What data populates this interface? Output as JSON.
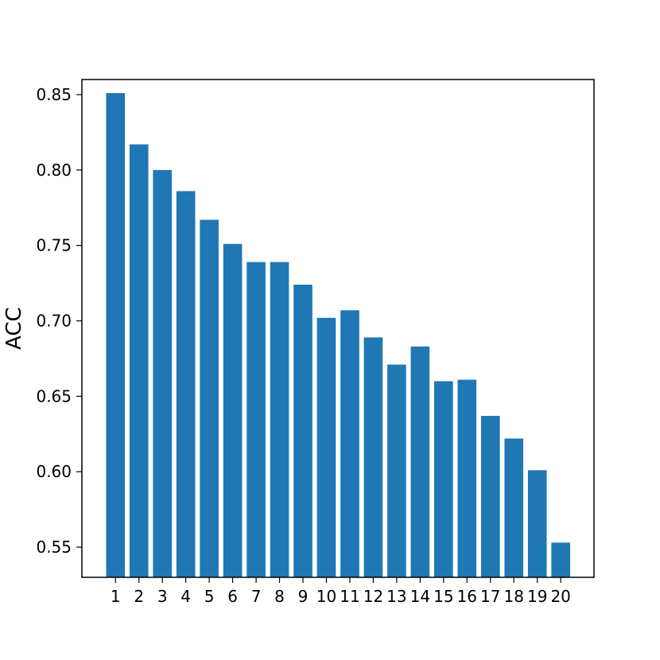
{
  "chart_data": {
    "type": "bar",
    "title": "",
    "xlabel": "",
    "ylabel": "ACC",
    "categories": [
      "1",
      "2",
      "3",
      "4",
      "5",
      "6",
      "7",
      "8",
      "9",
      "10",
      "11",
      "12",
      "13",
      "14",
      "15",
      "16",
      "17",
      "18",
      "19",
      "20"
    ],
    "values": [
      0.851,
      0.817,
      0.8,
      0.786,
      0.767,
      0.751,
      0.739,
      0.739,
      0.724,
      0.702,
      0.707,
      0.689,
      0.671,
      0.683,
      0.66,
      0.661,
      0.637,
      0.622,
      0.601,
      0.553
    ],
    "ylim": [
      0.53,
      0.86
    ],
    "yticks": [
      0.55,
      0.6,
      0.65,
      0.7,
      0.75,
      0.8,
      0.85
    ],
    "ytick_labels": [
      "0.55",
      "0.60",
      "0.65",
      "0.70",
      "0.75",
      "0.80",
      "0.85"
    ],
    "bar_color": "#1f77b4",
    "grid": false,
    "legend": "none"
  }
}
